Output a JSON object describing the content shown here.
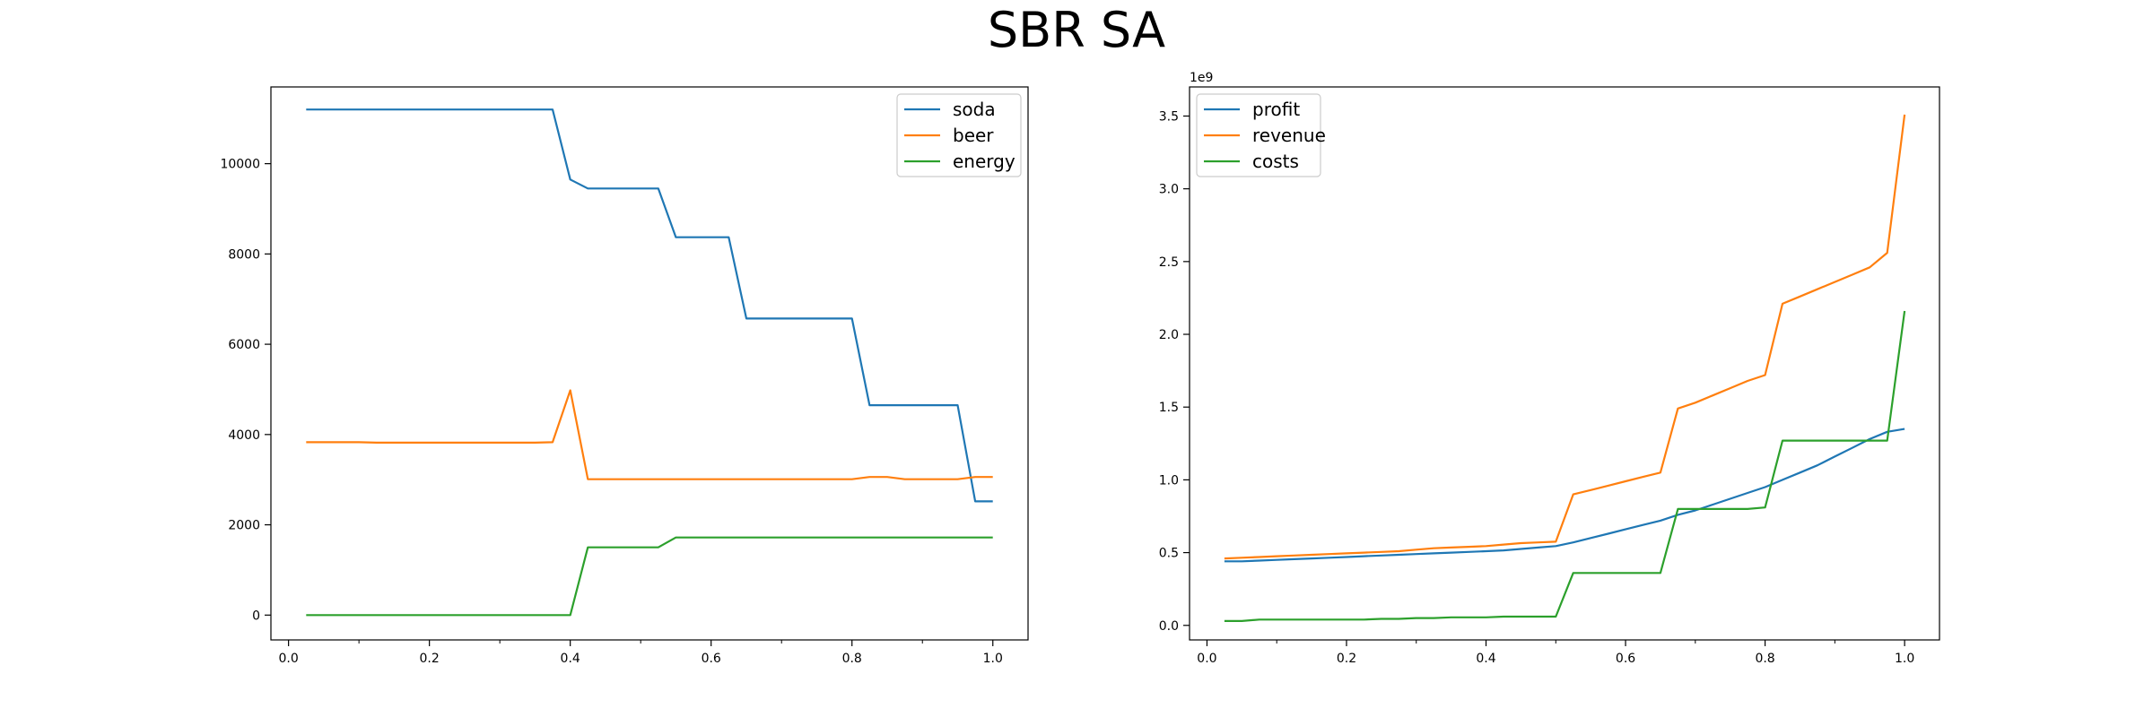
{
  "title": "SBR SA",
  "chart_data": [
    {
      "type": "line",
      "xlim": [
        -0.025,
        1.05
      ],
      "ylim": [
        -550,
        11700
      ],
      "xticks": [
        0.0,
        0.2,
        0.4,
        0.6,
        0.8,
        1.0
      ],
      "xtick_labels": [
        "0.0",
        "0.2",
        "0.4",
        "0.6",
        "0.8",
        "1.0"
      ],
      "yticks": [
        0,
        2000,
        4000,
        6000,
        8000,
        10000
      ],
      "ytick_labels": [
        "0",
        "2000",
        "4000",
        "6000",
        "8000",
        "10000"
      ],
      "y_multiplier": "",
      "legend_position": "upper right",
      "colors": [
        "#1f77b4",
        "#ff7f0e",
        "#2ca02c"
      ],
      "x": [
        0.025,
        0.05,
        0.075,
        0.1,
        0.125,
        0.15,
        0.175,
        0.2,
        0.225,
        0.25,
        0.275,
        0.3,
        0.325,
        0.35,
        0.375,
        0.4,
        0.425,
        0.45,
        0.475,
        0.5,
        0.525,
        0.55,
        0.575,
        0.6,
        0.625,
        0.65,
        0.675,
        0.7,
        0.725,
        0.75,
        0.775,
        0.8,
        0.825,
        0.85,
        0.875,
        0.9,
        0.925,
        0.95,
        0.975,
        1.0
      ],
      "series": [
        {
          "name": "soda",
          "values": [
            11200,
            11200,
            11200,
            11200,
            11200,
            11200,
            11200,
            11200,
            11200,
            11200,
            11200,
            11200,
            11200,
            11200,
            11200,
            9650,
            9450,
            9450,
            9450,
            9450,
            9450,
            8370,
            8370,
            8370,
            8370,
            6570,
            6570,
            6570,
            6570,
            6570,
            6570,
            6570,
            4650,
            4650,
            4650,
            4650,
            4650,
            4650,
            2520,
            2520
          ]
        },
        {
          "name": "beer",
          "values": [
            3830,
            3830,
            3830,
            3830,
            3820,
            3820,
            3820,
            3820,
            3820,
            3820,
            3820,
            3820,
            3820,
            3820,
            3830,
            4980,
            3010,
            3010,
            3010,
            3010,
            3010,
            3010,
            3010,
            3010,
            3010,
            3010,
            3010,
            3010,
            3010,
            3010,
            3010,
            3010,
            3060,
            3060,
            3010,
            3010,
            3010,
            3010,
            3060,
            3060
          ]
        },
        {
          "name": "energy",
          "values": [
            0,
            0,
            0,
            0,
            0,
            0,
            0,
            0,
            0,
            0,
            0,
            0,
            0,
            0,
            0,
            0,
            1500,
            1500,
            1500,
            1500,
            1500,
            1720,
            1720,
            1720,
            1720,
            1720,
            1720,
            1720,
            1720,
            1720,
            1720,
            1720,
            1720,
            1720,
            1720,
            1720,
            1720,
            1720,
            1720,
            1720
          ]
        }
      ]
    },
    {
      "type": "line",
      "xlim": [
        -0.025,
        1.05
      ],
      "ylim": [
        -0.1,
        3.7
      ],
      "xticks": [
        0.0,
        0.2,
        0.4,
        0.6,
        0.8,
        1.0
      ],
      "xtick_labels": [
        "0.0",
        "0.2",
        "0.4",
        "0.6",
        "0.8",
        "1.0"
      ],
      "yticks": [
        0.0,
        0.5,
        1.0,
        1.5,
        2.0,
        2.5,
        3.0,
        3.5
      ],
      "ytick_labels": [
        "0.0",
        "0.5",
        "1.0",
        "1.5",
        "2.0",
        "2.5",
        "3.0",
        "3.5"
      ],
      "y_multiplier": "1e9",
      "legend_position": "upper left",
      "colors": [
        "#1f77b4",
        "#ff7f0e",
        "#2ca02c"
      ],
      "x": [
        0.025,
        0.05,
        0.075,
        0.1,
        0.125,
        0.15,
        0.175,
        0.2,
        0.225,
        0.25,
        0.275,
        0.3,
        0.325,
        0.35,
        0.375,
        0.4,
        0.425,
        0.45,
        0.475,
        0.5,
        0.525,
        0.55,
        0.575,
        0.6,
        0.625,
        0.65,
        0.675,
        0.7,
        0.725,
        0.75,
        0.775,
        0.8,
        0.825,
        0.85,
        0.875,
        0.9,
        0.925,
        0.95,
        0.975,
        1.0
      ],
      "series": [
        {
          "name": "profit",
          "values": [
            0.44,
            0.44,
            0.445,
            0.45,
            0.455,
            0.46,
            0.465,
            0.47,
            0.475,
            0.48,
            0.485,
            0.49,
            0.495,
            0.5,
            0.505,
            0.51,
            0.515,
            0.525,
            0.535,
            0.545,
            0.57,
            0.6,
            0.63,
            0.66,
            0.69,
            0.72,
            0.76,
            0.79,
            0.83,
            0.87,
            0.91,
            0.95,
            1.0,
            1.05,
            1.1,
            1.16,
            1.22,
            1.28,
            1.33,
            1.35
          ]
        },
        {
          "name": "revenue",
          "values": [
            0.46,
            0.465,
            0.47,
            0.475,
            0.48,
            0.485,
            0.49,
            0.495,
            0.5,
            0.505,
            0.51,
            0.52,
            0.53,
            0.535,
            0.54,
            0.545,
            0.555,
            0.565,
            0.57,
            0.575,
            0.9,
            0.93,
            0.96,
            0.99,
            1.02,
            1.05,
            1.49,
            1.53,
            1.58,
            1.63,
            1.68,
            1.72,
            2.21,
            2.26,
            2.31,
            2.36,
            2.41,
            2.46,
            2.56,
            3.51
          ]
        },
        {
          "name": "costs",
          "values": [
            0.03,
            0.03,
            0.04,
            0.04,
            0.04,
            0.04,
            0.04,
            0.04,
            0.04,
            0.045,
            0.045,
            0.05,
            0.05,
            0.055,
            0.055,
            0.055,
            0.06,
            0.06,
            0.06,
            0.06,
            0.36,
            0.36,
            0.36,
            0.36,
            0.36,
            0.36,
            0.8,
            0.8,
            0.8,
            0.8,
            0.8,
            0.81,
            1.27,
            1.27,
            1.27,
            1.27,
            1.27,
            1.27,
            1.27,
            2.16
          ]
        }
      ]
    }
  ]
}
